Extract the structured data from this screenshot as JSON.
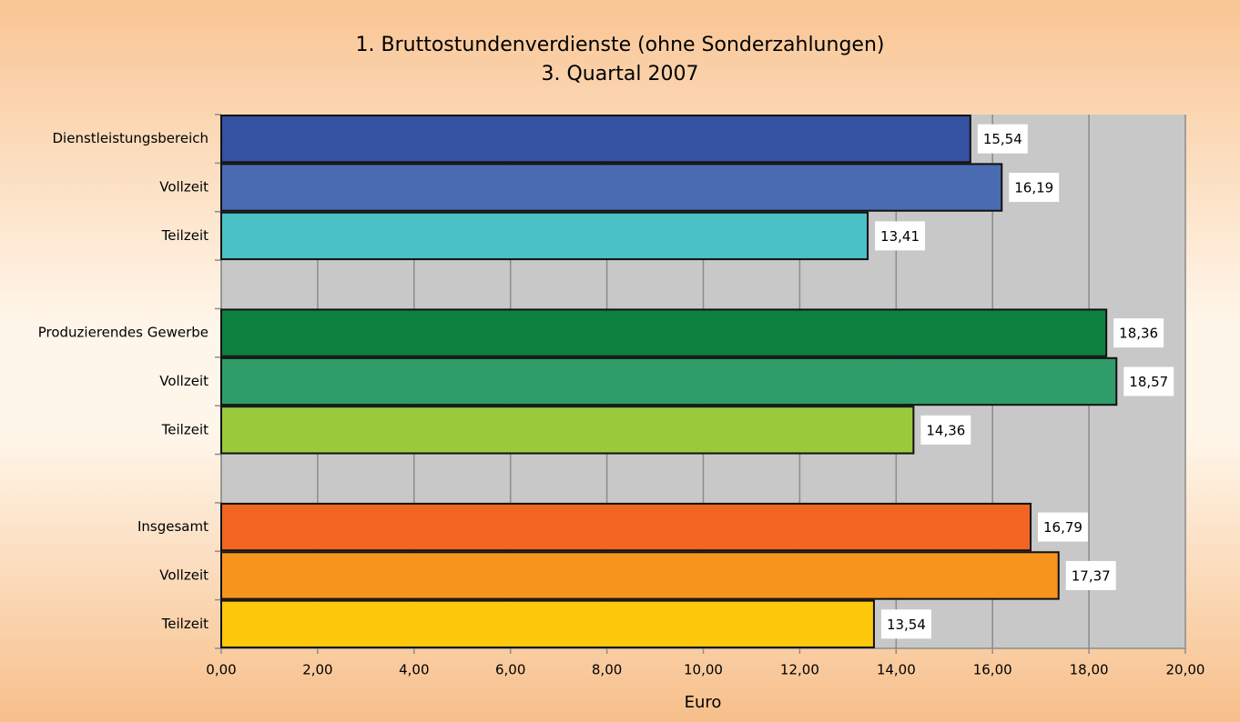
{
  "chart_data": {
    "type": "barh",
    "title": "1. Bruttostundenverdienste (ohne Sonderzahlungen)",
    "subtitle": "3. Quartal 2007",
    "x_label": "Euro",
    "categories": [
      "Dienstleistungsbereich",
      "Vollzeit",
      "Teilzeit",
      null,
      "Produzierendes Gewerbe",
      "Vollzeit",
      "Teilzeit",
      null,
      "Insgesamt",
      "Vollzeit",
      "Teilzeit"
    ],
    "values": [
      15.54,
      16.19,
      13.41,
      null,
      18.36,
      18.57,
      14.36,
      null,
      16.79,
      17.37,
      13.54
    ],
    "value_labels": [
      "15,54",
      "16,19",
      "13,41",
      null,
      "18,36",
      "18,57",
      "14,36",
      null,
      "16,79",
      "17,37",
      "13,54"
    ],
    "colors": [
      "#3551a2",
      "#4a6bb2",
      "#49c1c7",
      null,
      "#0e8040",
      "#2f9d69",
      "#9aca3c",
      null,
      "#f26522",
      "#f7941d",
      "#fdc70c"
    ],
    "xlim": [
      0,
      20
    ],
    "xticks": [
      {
        "value": 0,
        "label": "0,00"
      },
      {
        "value": 2,
        "label": "2,00"
      },
      {
        "value": 4,
        "label": "4,00"
      },
      {
        "value": 6,
        "label": "6,00"
      },
      {
        "value": 8,
        "label": "8,00"
      },
      {
        "value": 10,
        "label": "10,00"
      },
      {
        "value": 12,
        "label": "12,00"
      },
      {
        "value": 14,
        "label": "14,00"
      },
      {
        "value": 16,
        "label": "16,00"
      },
      {
        "value": 18,
        "label": "18,00"
      },
      {
        "value": 20,
        "label": "20,00"
      }
    ],
    "grid": true
  }
}
